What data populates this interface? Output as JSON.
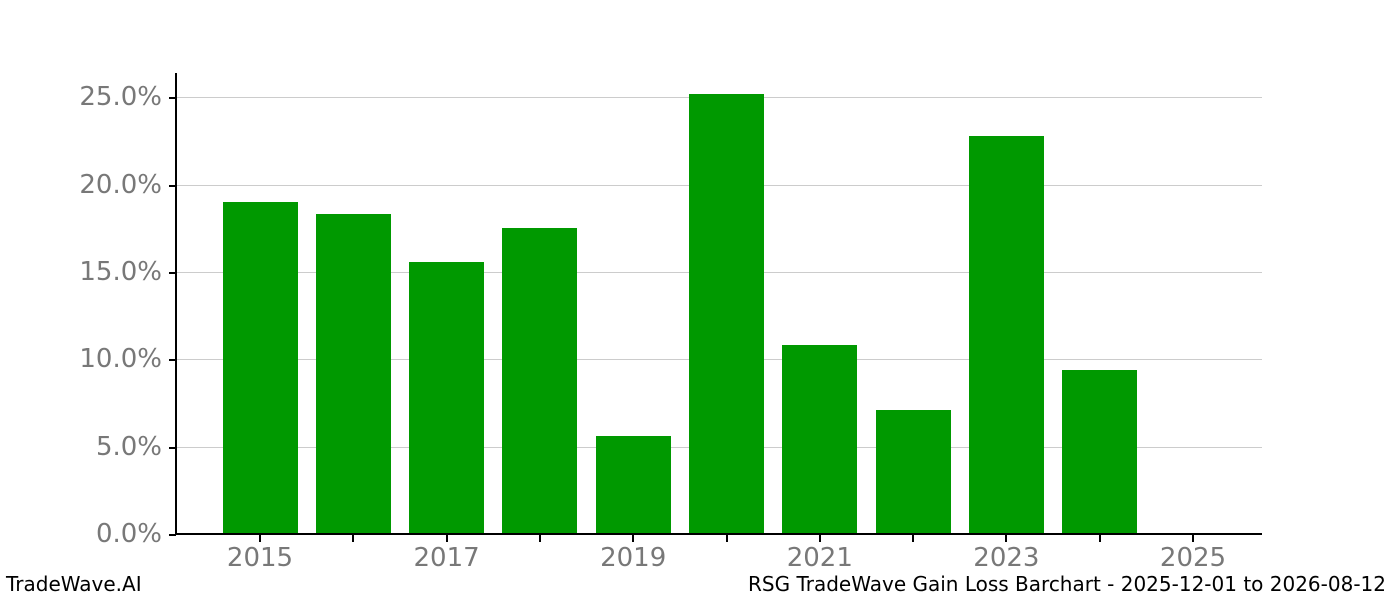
{
  "footer": {
    "left": "TradeWave.AI"
  },
  "colors": {
    "bar": "#009900",
    "gridline": "#cccccc",
    "axis": "#000000",
    "tick_label": "#787878",
    "background": "#ffffff"
  },
  "chart_data": {
    "type": "bar",
    "title": "RSG TradeWave Gain Loss Barchart - 2025-12-01 to 2026-08-12",
    "xlabel": "",
    "ylabel": "",
    "unit": "percent",
    "categories": [
      "2015",
      "2016",
      "2017",
      "2018",
      "2019",
      "2020",
      "2021",
      "2022",
      "2023",
      "2024",
      "2025"
    ],
    "values": [
      19.0,
      18.3,
      15.6,
      17.5,
      5.6,
      25.2,
      10.8,
      7.1,
      22.8,
      9.4,
      null
    ],
    "bar_color": "#009900",
    "ylim": [
      0,
      26.4
    ],
    "yticks": [
      0,
      5,
      10,
      15,
      20,
      25
    ],
    "ytick_labels": [
      "0.0%",
      "5.0%",
      "10.0%",
      "15.0%",
      "20.0%",
      "25.0%"
    ],
    "xticks_every_year": true,
    "xtick_labels_shown": [
      "2015",
      "2017",
      "2019",
      "2021",
      "2023",
      "2025"
    ],
    "grid": "horizontal",
    "legend": "none"
  }
}
